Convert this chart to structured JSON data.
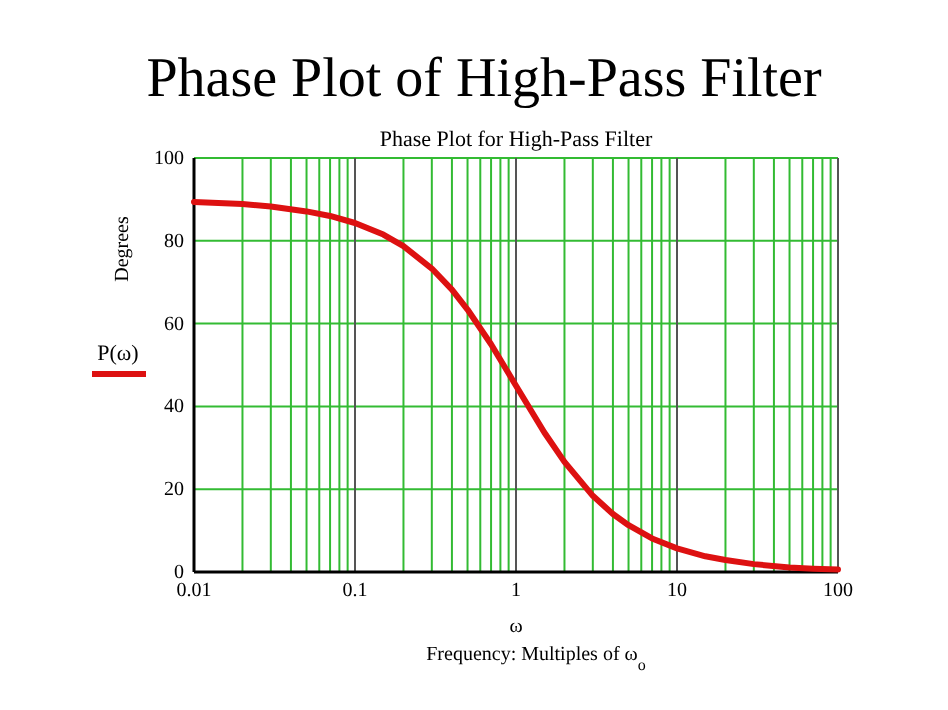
{
  "chart_data": {
    "type": "line",
    "title": "Phase Plot of High-Pass Filter",
    "subtitle": "Phase Plot for High-Pass Filter",
    "xlabel": "ω",
    "ylabel": "Degrees",
    "annotations": [
      "Frequency: Multiples of ω$_{o}$"
    ],
    "x": [
      0.01,
      0.02,
      0.03,
      0.05,
      0.07,
      0.1,
      0.15,
      0.2,
      0.3,
      0.4,
      0.5,
      0.7,
      1,
      1.5,
      2,
      3,
      4,
      5,
      7,
      10,
      15,
      20,
      30,
      50,
      70,
      100
    ],
    "series": [
      {
        "name": "P(ω)",
        "color": "#dd1111",
        "values": [
          89.4,
          88.9,
          88.3,
          87.1,
          86,
          84.3,
          81.5,
          78.7,
          73.3,
          68.2,
          63.4,
          55,
          45,
          33.7,
          26.6,
          18.4,
          14,
          11.3,
          8.1,
          5.7,
          3.8,
          2.9,
          1.9,
          1.1,
          0.8,
          0.6
        ]
      }
    ],
    "log": "x",
    "xlim": [
      0.01,
      100
    ],
    "ylim": [
      0,
      100
    ],
    "xticks": [
      0.01,
      {
        "value": 0.02,
        "label": null
      },
      {
        "value": 0.03,
        "label": null
      },
      {
        "value": 0.04,
        "label": null
      },
      {
        "value": 0.05,
        "label": null
      },
      {
        "value": 0.06,
        "label": null
      },
      {
        "value": 0.07,
        "label": null
      },
      {
        "value": 0.08,
        "label": null
      },
      {
        "value": 0.09,
        "label": null
      },
      0.1,
      {
        "value": 0.2,
        "label": null
      },
      {
        "value": 0.3,
        "label": null
      },
      {
        "value": 0.4,
        "label": null
      },
      {
        "value": 0.5,
        "label": null
      },
      {
        "value": 0.6,
        "label": null
      },
      {
        "value": 0.7,
        "label": null
      },
      {
        "value": 0.8,
        "label": null
      },
      {
        "value": 0.9,
        "label": null
      },
      1,
      {
        "value": 2,
        "label": null
      },
      {
        "value": 3,
        "label": null
      },
      {
        "value": 4,
        "label": null
      },
      {
        "value": 5,
        "label": null
      },
      {
        "value": 6,
        "label": null
      },
      {
        "value": 7,
        "label": null
      },
      {
        "value": 8,
        "label": null
      },
      {
        "value": 9,
        "label": null
      },
      10,
      {
        "value": 20,
        "label": null
      },
      {
        "value": 30,
        "label": null
      },
      {
        "value": 40,
        "label": null
      },
      {
        "value": 50,
        "label": null
      },
      {
        "value": 60,
        "label": null
      },
      {
        "value": 70,
        "label": null
      },
      {
        "value": 80,
        "label": null
      },
      {
        "value": 90,
        "label": null
      },
      100
    ],
    "yticks": [
      0,
      20,
      40,
      60,
      80,
      100
    ],
    "grid": true,
    "legend": "left",
    "marker": "none",
    "line_style": "solid"
  }
}
